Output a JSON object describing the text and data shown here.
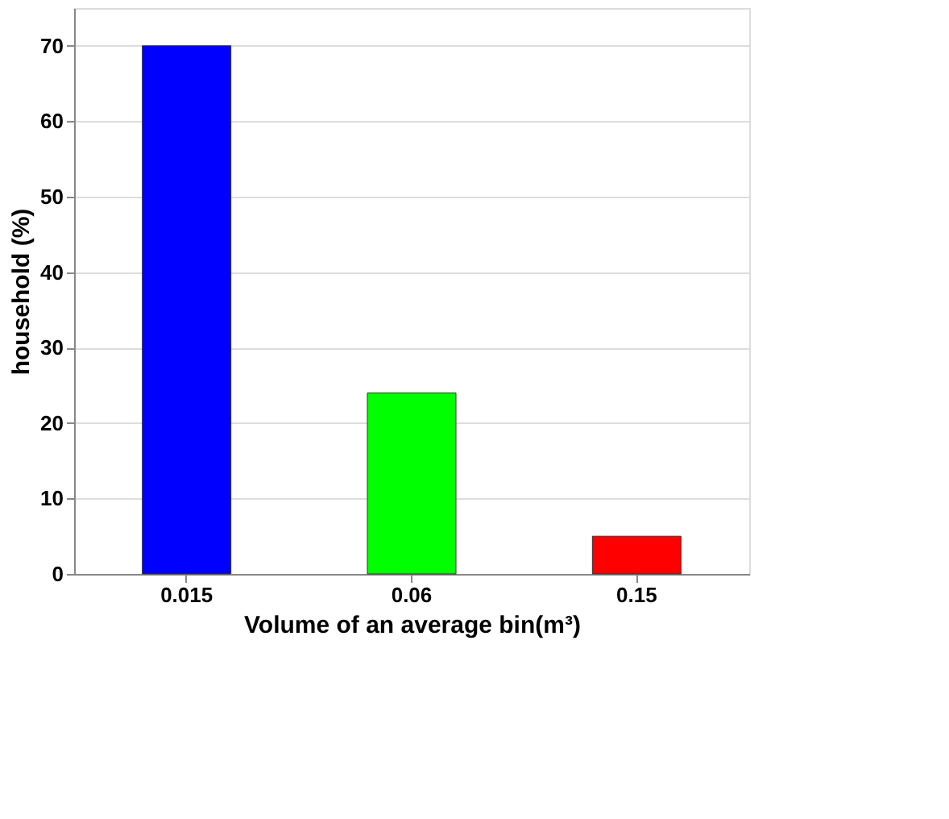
{
  "chart_data": {
    "type": "bar",
    "categories": [
      "0.015",
      "0.06",
      "0.15"
    ],
    "values": [
      70,
      24,
      5
    ],
    "colors": [
      "#0000ff",
      "#00ff00",
      "#ff0000"
    ],
    "xlabel": "Volume of an average bin(m³)",
    "ylabel": "household (%)",
    "ylim": [
      0,
      75
    ],
    "yticks": [
      0,
      10,
      20,
      30,
      40,
      50,
      60,
      70
    ],
    "grid": "y"
  }
}
